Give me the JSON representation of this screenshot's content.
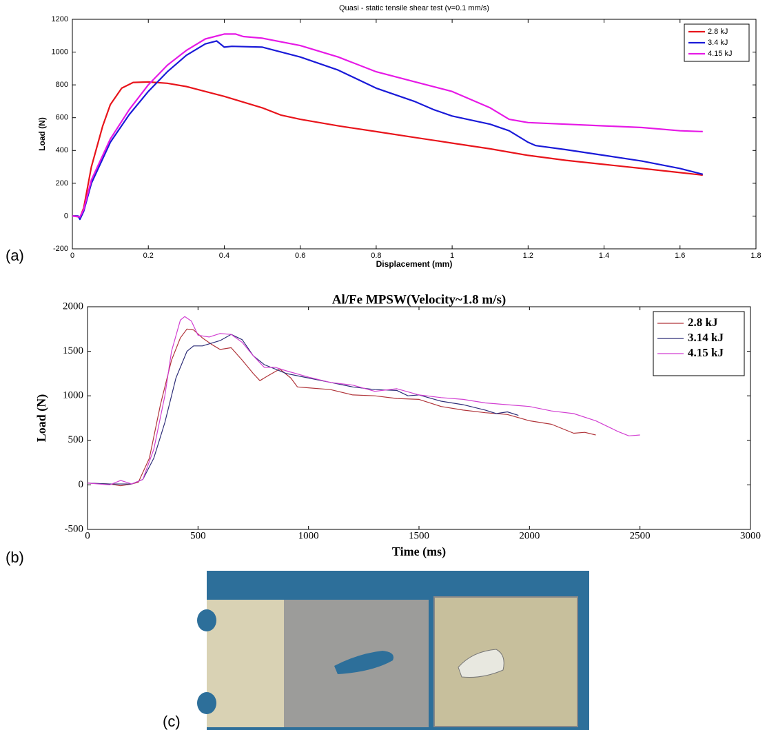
{
  "chart_data": [
    {
      "type": "line",
      "panel_label": "(a)",
      "title": "Quasi - static tensile shear test (v=0.1 mm/s)",
      "x_label": "Displacement (mm)",
      "y_label": "Load (N)",
      "xlim": [
        0,
        1.8
      ],
      "xticks": [
        0,
        0.2,
        0.4,
        0.6,
        0.8,
        1,
        1.2,
        1.4,
        1.6,
        1.8
      ],
      "ylim": [
        -200,
        1200
      ],
      "yticks": [
        -200,
        0,
        200,
        400,
        600,
        800,
        1000,
        1200
      ],
      "legend": "upper right",
      "series": [
        {
          "name": "2.8 kJ",
          "color": "#e8141b",
          "x": [
            0,
            0.01,
            0.02,
            0.03,
            0.05,
            0.08,
            0.1,
            0.13,
            0.16,
            0.2,
            0.25,
            0.3,
            0.35,
            0.4,
            0.5,
            0.55,
            0.6,
            0.7,
            0.8,
            0.9,
            1.0,
            1.1,
            1.2,
            1.3,
            1.4,
            1.5,
            1.6,
            1.66
          ],
          "values": [
            0,
            0,
            -10,
            50,
            300,
            550,
            680,
            780,
            815,
            818,
            810,
            790,
            760,
            730,
            660,
            615,
            590,
            550,
            515,
            480,
            445,
            410,
            370,
            340,
            315,
            290,
            265,
            250
          ]
        },
        {
          "name": "3.4 kJ",
          "color": "#1a1ad8",
          "x": [
            0,
            0.015,
            0.02,
            0.03,
            0.05,
            0.1,
            0.15,
            0.2,
            0.25,
            0.3,
            0.35,
            0.38,
            0.4,
            0.42,
            0.5,
            0.6,
            0.7,
            0.8,
            0.9,
            0.95,
            1.0,
            1.1,
            1.15,
            1.2,
            1.22,
            1.3,
            1.4,
            1.5,
            1.6,
            1.66
          ],
          "values": [
            0,
            0,
            -20,
            30,
            200,
            450,
            620,
            760,
            880,
            980,
            1050,
            1068,
            1030,
            1035,
            1030,
            970,
            890,
            780,
            700,
            650,
            610,
            560,
            520,
            450,
            430,
            405,
            370,
            335,
            290,
            255
          ]
        },
        {
          "name": "4.15 kJ",
          "color": "#e619e6",
          "x": [
            0,
            0.02,
            0.03,
            0.05,
            0.1,
            0.15,
            0.2,
            0.25,
            0.3,
            0.35,
            0.4,
            0.43,
            0.45,
            0.5,
            0.6,
            0.7,
            0.8,
            0.9,
            1.0,
            1.1,
            1.15,
            1.2,
            1.3,
            1.4,
            1.5,
            1.6,
            1.66
          ],
          "values": [
            0,
            -5,
            40,
            220,
            470,
            650,
            800,
            920,
            1010,
            1080,
            1110,
            1110,
            1095,
            1085,
            1040,
            970,
            880,
            820,
            760,
            660,
            590,
            570,
            560,
            550,
            540,
            520,
            515
          ]
        }
      ]
    },
    {
      "type": "line",
      "panel_label": "(b)",
      "title": "Al/Fe MPSW(Velocity~1.8 m/s)",
      "x_label": "Time (ms)",
      "y_label": "Load (N)",
      "xlim": [
        0,
        3000
      ],
      "xticks": [
        0,
        500,
        1000,
        1500,
        2000,
        2500,
        3000
      ],
      "ylim": [
        -500,
        2000
      ],
      "yticks": [
        -500,
        0,
        500,
        1000,
        1500,
        2000
      ],
      "legend": "upper right",
      "series": [
        {
          "name": "2.8 kJ",
          "color": "#b0343a",
          "x": [
            0,
            100,
            150,
            200,
            230,
            280,
            330,
            380,
            420,
            450,
            480,
            520,
            560,
            600,
            650,
            700,
            750,
            780,
            820,
            870,
            920,
            950,
            1000,
            1100,
            1200,
            1300,
            1400,
            1500,
            1600,
            1700,
            1800,
            1900,
            2000,
            2100,
            2200,
            2250,
            2300
          ],
          "values": [
            20,
            10,
            -10,
            10,
            30,
            300,
            900,
            1400,
            1650,
            1750,
            1740,
            1650,
            1580,
            1520,
            1540,
            1400,
            1250,
            1170,
            1230,
            1300,
            1200,
            1100,
            1090,
            1070,
            1010,
            1000,
            970,
            960,
            880,
            840,
            810,
            790,
            720,
            680,
            580,
            590,
            560
          ]
        },
        {
          "name": "3.14 kJ",
          "color": "#2e2e78",
          "x": [
            0,
            100,
            200,
            250,
            300,
            350,
            400,
            450,
            480,
            520,
            600,
            650,
            700,
            750,
            800,
            850,
            900,
            1000,
            1100,
            1200,
            1300,
            1400,
            1450,
            1500,
            1600,
            1700,
            1800,
            1850,
            1900,
            1950
          ],
          "values": [
            20,
            10,
            10,
            60,
            300,
            700,
            1200,
            1500,
            1560,
            1560,
            1620,
            1690,
            1630,
            1450,
            1350,
            1300,
            1250,
            1200,
            1150,
            1100,
            1070,
            1060,
            1000,
            1010,
            940,
            900,
            840,
            800,
            820,
            780
          ]
        },
        {
          "name": "4.15 kJ",
          "color": "#d23fd2",
          "x": [
            0,
            100,
            150,
            200,
            250,
            300,
            350,
            380,
            420,
            440,
            470,
            500,
            550,
            600,
            650,
            700,
            750,
            800,
            850,
            900,
            1000,
            1100,
            1200,
            1300,
            1400,
            1500,
            1600,
            1700,
            1800,
            1900,
            2000,
            2100,
            2200,
            2300,
            2400,
            2450,
            2500
          ],
          "values": [
            20,
            0,
            50,
            10,
            60,
            400,
            1000,
            1500,
            1850,
            1890,
            1840,
            1680,
            1660,
            1700,
            1690,
            1600,
            1450,
            1320,
            1320,
            1280,
            1210,
            1150,
            1120,
            1050,
            1080,
            1010,
            980,
            960,
            920,
            900,
            880,
            830,
            800,
            720,
            600,
            550,
            560
          ]
        }
      ]
    }
  ],
  "photo": {
    "panel_label": "(c)"
  }
}
